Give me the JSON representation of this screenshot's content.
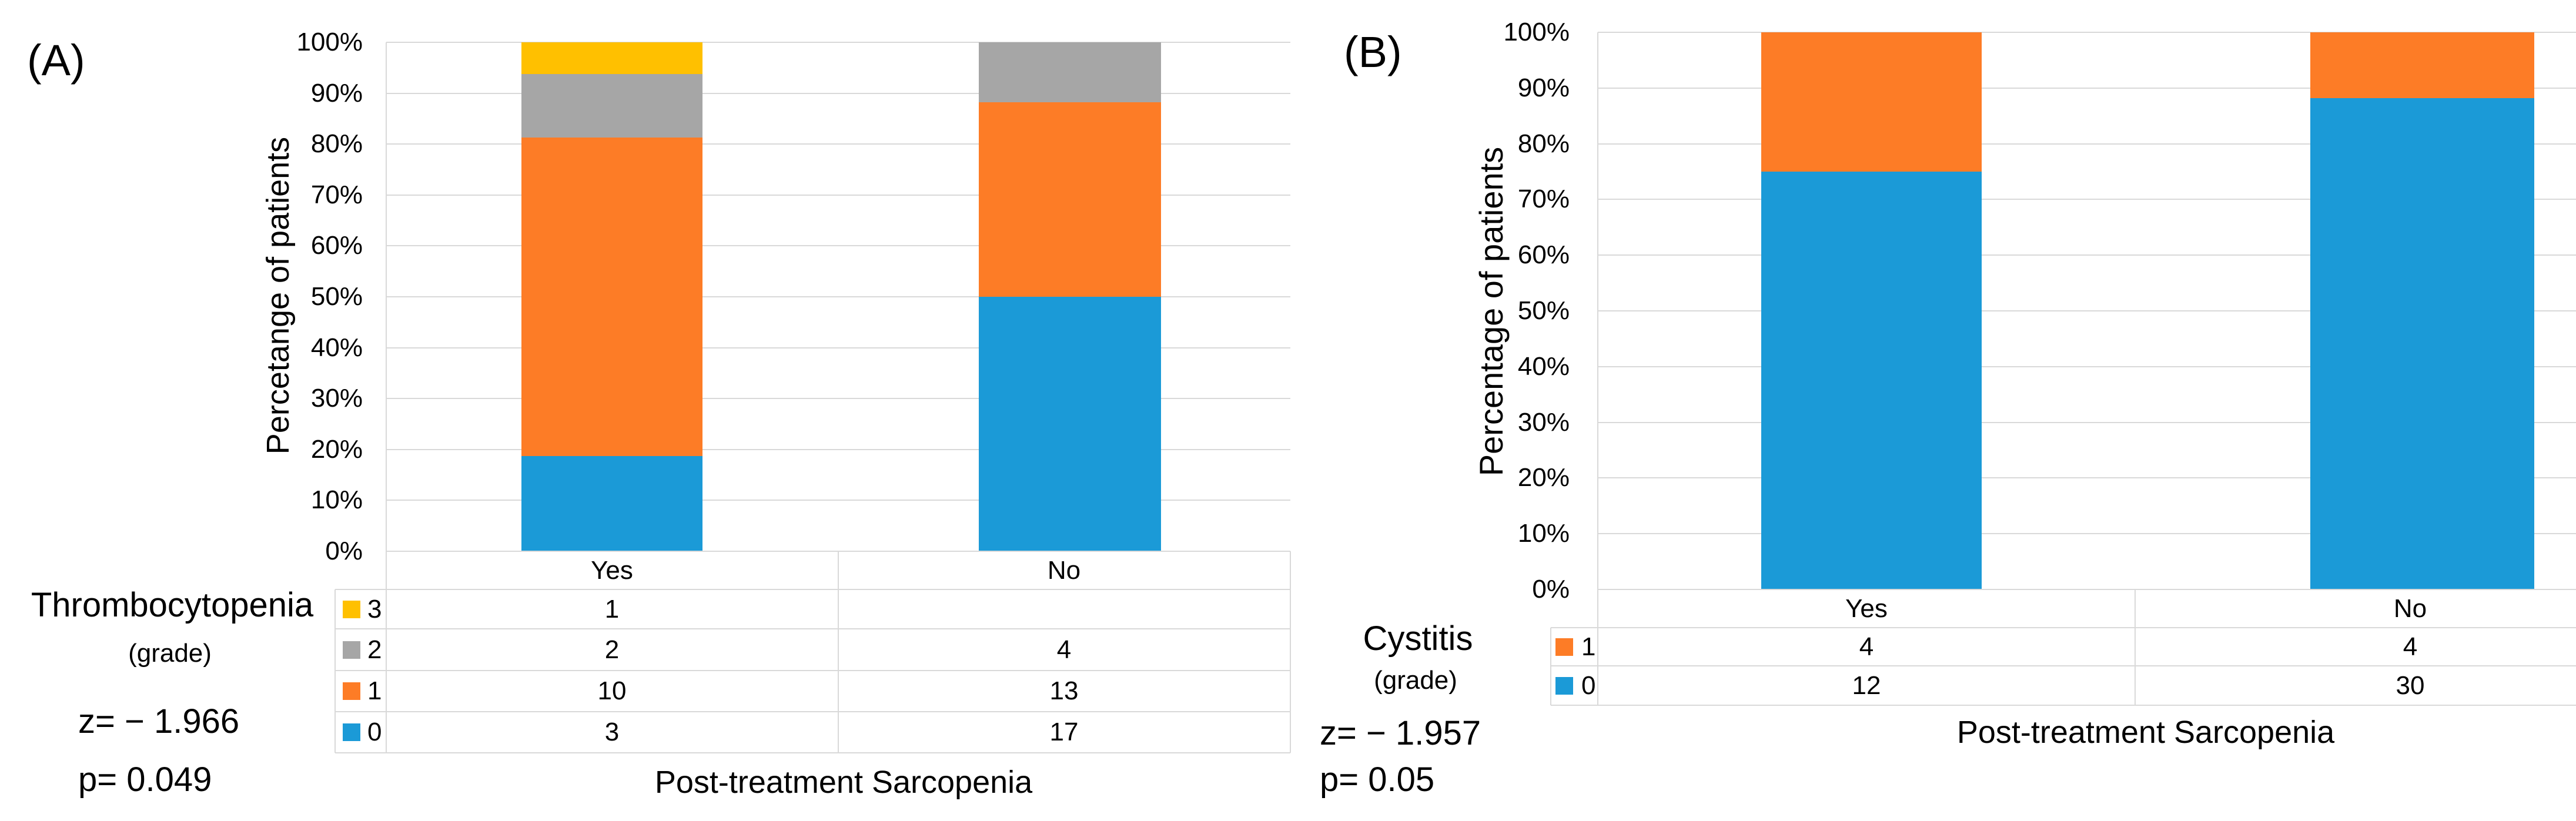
{
  "chart_data": [
    {
      "type": "bar",
      "subtype": "100-percent-stacked-column",
      "panel": "(A)",
      "categories": [
        "Yes",
        "No"
      ],
      "series": [
        {
          "name": "3",
          "color": "#FFC000",
          "values": [
            1,
            null
          ]
        },
        {
          "name": "2",
          "color": "#A6A6A6",
          "values": [
            2,
            4
          ]
        },
        {
          "name": "1",
          "color": "#FD7C26",
          "values": [
            10,
            13
          ]
        },
        {
          "name": "0",
          "color": "#1B9AD7",
          "values": [
            3,
            17
          ]
        }
      ],
      "xlabel": "Post-treatment Sarcopenia",
      "ylabel": "Percetange of patients",
      "yticks": [
        "0%",
        "10%",
        "20%",
        "30%",
        "40%",
        "50%",
        "60%",
        "70%",
        "80%",
        "90%",
        "100%"
      ],
      "ylim": [
        "0%",
        "100%"
      ],
      "grid": "horizontal",
      "legend_title": "Thrombocytopenia",
      "legend_subtitle": "(grade)",
      "annotations": {
        "z": "z= − 1.966",
        "p": "p= 0.049"
      },
      "data_table": "below-axis"
    },
    {
      "type": "bar",
      "subtype": "100-percent-stacked-column",
      "panel": "(B)",
      "categories": [
        "Yes",
        "No"
      ],
      "series": [
        {
          "name": "1",
          "color": "#FD7C26",
          "values": [
            4,
            4
          ]
        },
        {
          "name": "0",
          "color": "#1B9AD7",
          "values": [
            12,
            30
          ]
        }
      ],
      "xlabel": "Post-treatment Sarcopenia",
      "ylabel": "Percentage of patients",
      "yticks": [
        "0%",
        "10%",
        "20%",
        "30%",
        "40%",
        "50%",
        "60%",
        "70%",
        "80%",
        "90%",
        "100%"
      ],
      "ylim": [
        "0%",
        "100%"
      ],
      "grid": "horizontal",
      "legend_title": "Cystitis",
      "legend_subtitle": "(grade)",
      "annotations": {
        "z": "z= − 1.957",
        "p": "p= 0.05"
      },
      "data_table": "below-axis"
    }
  ],
  "colors": {
    "blue": "#1B9AD7",
    "orange": "#FD7C26",
    "gray": "#A6A6A6",
    "yellow": "#FFC000",
    "gridline": "#d9d9d9"
  }
}
